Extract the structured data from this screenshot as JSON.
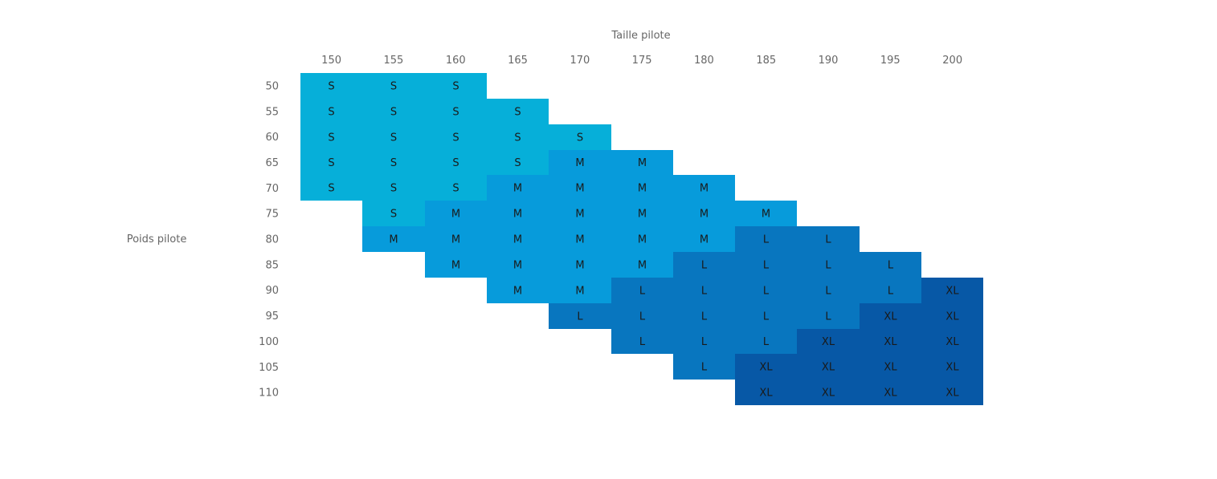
{
  "chart_data": {
    "type": "heatmap",
    "title": "",
    "xlabel": "Taille pilote",
    "ylabel": "Poids pilote",
    "x": [
      150,
      155,
      160,
      165,
      170,
      175,
      180,
      185,
      190,
      195,
      200
    ],
    "y": [
      50,
      55,
      60,
      65,
      70,
      75,
      80,
      85,
      90,
      95,
      100,
      105,
      110
    ],
    "categories_colors": {
      "S": "#06afd9",
      "M": "#079bdb",
      "L": "#0876bf",
      "XL": "#0758a6"
    },
    "cells": [
      [
        "S",
        "S",
        "S",
        "",
        "",
        "",
        "",
        "",
        "",
        "",
        ""
      ],
      [
        "S",
        "S",
        "S",
        "S",
        "",
        "",
        "",
        "",
        "",
        "",
        ""
      ],
      [
        "S",
        "S",
        "S",
        "S",
        "S",
        "",
        "",
        "",
        "",
        "",
        ""
      ],
      [
        "S",
        "S",
        "S",
        "S",
        "M",
        "M",
        "",
        "",
        "",
        "",
        ""
      ],
      [
        "S",
        "S",
        "S",
        "M",
        "M",
        "M",
        "M",
        "",
        "",
        "",
        ""
      ],
      [
        "",
        "S",
        "M",
        "M",
        "M",
        "M",
        "M",
        "M",
        "",
        "",
        ""
      ],
      [
        "",
        "M",
        "M",
        "M",
        "M",
        "M",
        "M",
        "L",
        "L",
        "",
        ""
      ],
      [
        "",
        "",
        "M",
        "M",
        "M",
        "M",
        "L",
        "L",
        "L",
        "L",
        ""
      ],
      [
        "",
        "",
        "",
        "M",
        "M",
        "L",
        "L",
        "L",
        "L",
        "L",
        "XL"
      ],
      [
        "",
        "",
        "",
        "",
        "L",
        "L",
        "L",
        "L",
        "L",
        "XL",
        "XL"
      ],
      [
        "",
        "",
        "",
        "",
        "",
        "L",
        "L",
        "L",
        "XL",
        "XL",
        "XL"
      ],
      [
        "",
        "",
        "",
        "",
        "",
        "",
        "L",
        "XL",
        "XL",
        "XL",
        "XL"
      ],
      [
        "",
        "",
        "",
        "",
        "",
        "",
        "",
        "XL",
        "XL",
        "XL",
        "XL"
      ]
    ]
  }
}
